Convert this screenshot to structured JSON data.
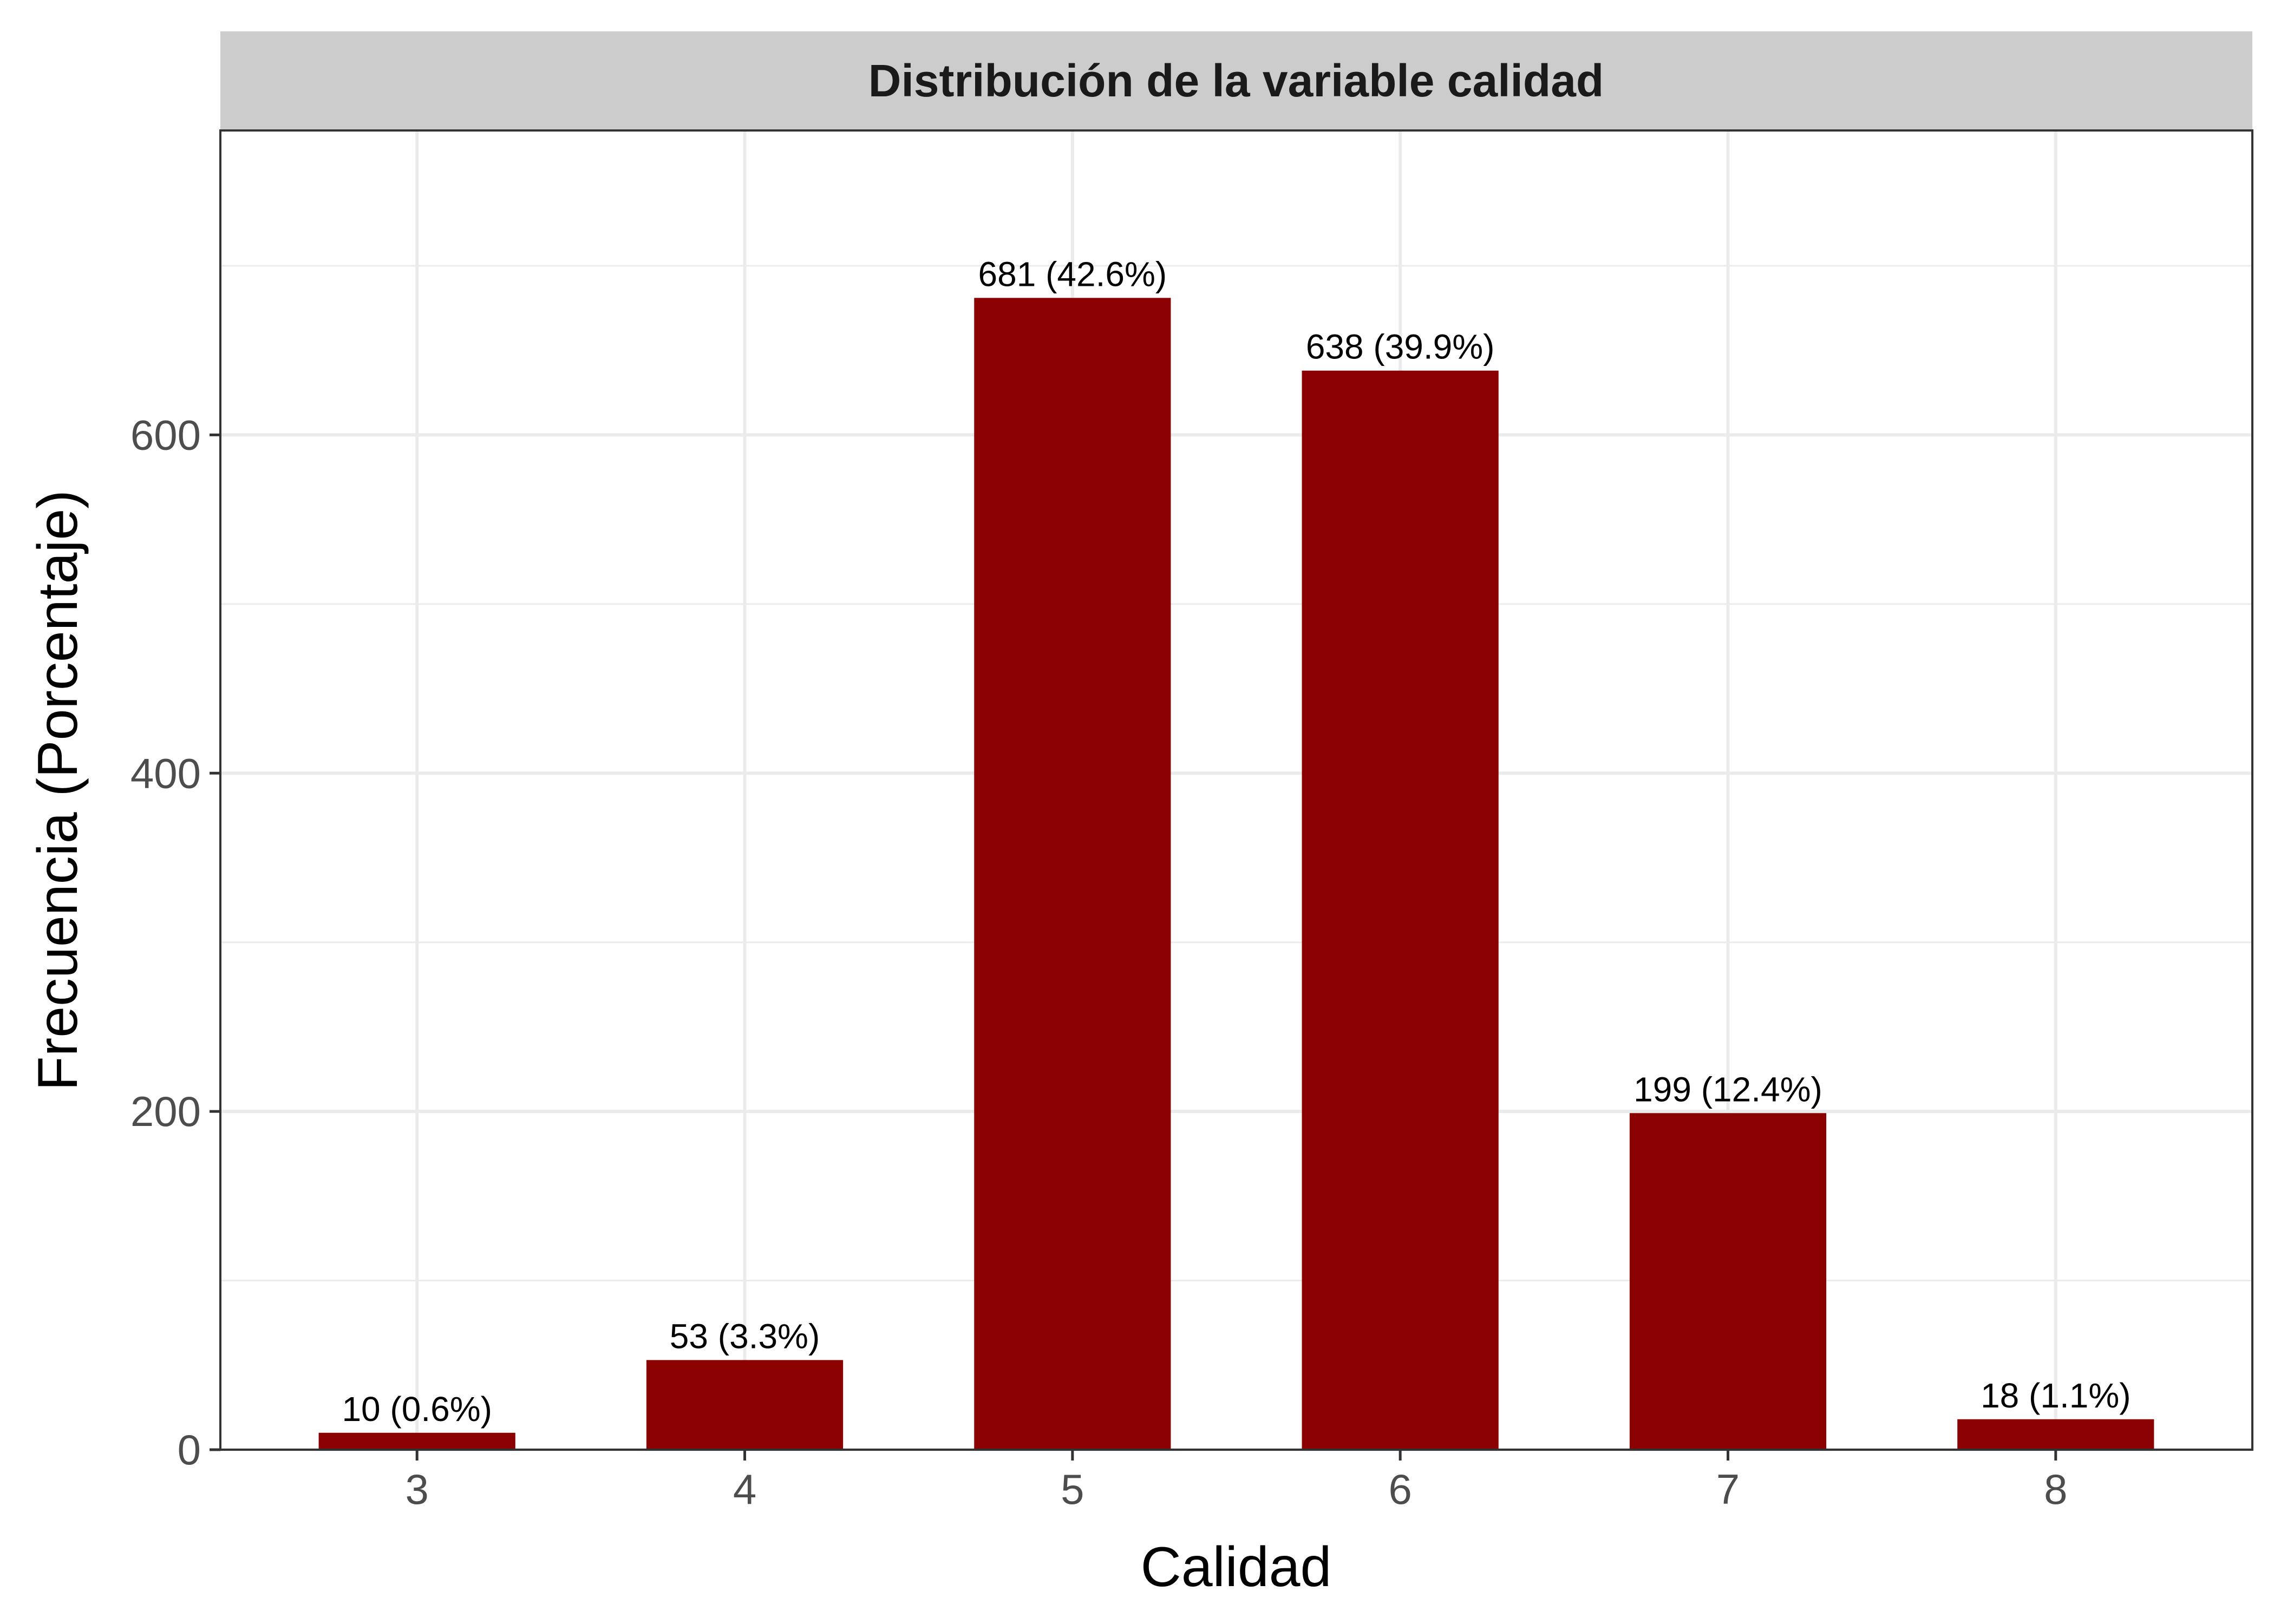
{
  "chart_data": {
    "type": "bar",
    "title": "Distribución de la variable calidad",
    "xlabel": "Calidad",
    "ylabel": "Frecuencia (Porcentaje)",
    "categories": [
      "3",
      "4",
      "5",
      "6",
      "7",
      "8"
    ],
    "values": [
      10,
      53,
      681,
      638,
      199,
      18
    ],
    "data_labels": [
      "10 (0.6%)",
      "53 (3.3%)",
      "681 (42.6%)",
      "638 (39.9%)",
      "199 (12.4%)",
      "18 (1.1%)"
    ],
    "y_ticks": [
      0,
      200,
      400,
      600
    ],
    "ylim": [
      0,
      780
    ],
    "grid": true,
    "bar_color": "#8B0000",
    "strip_color": "#CCCCCC",
    "grid_color": "#EBEBEB"
  }
}
